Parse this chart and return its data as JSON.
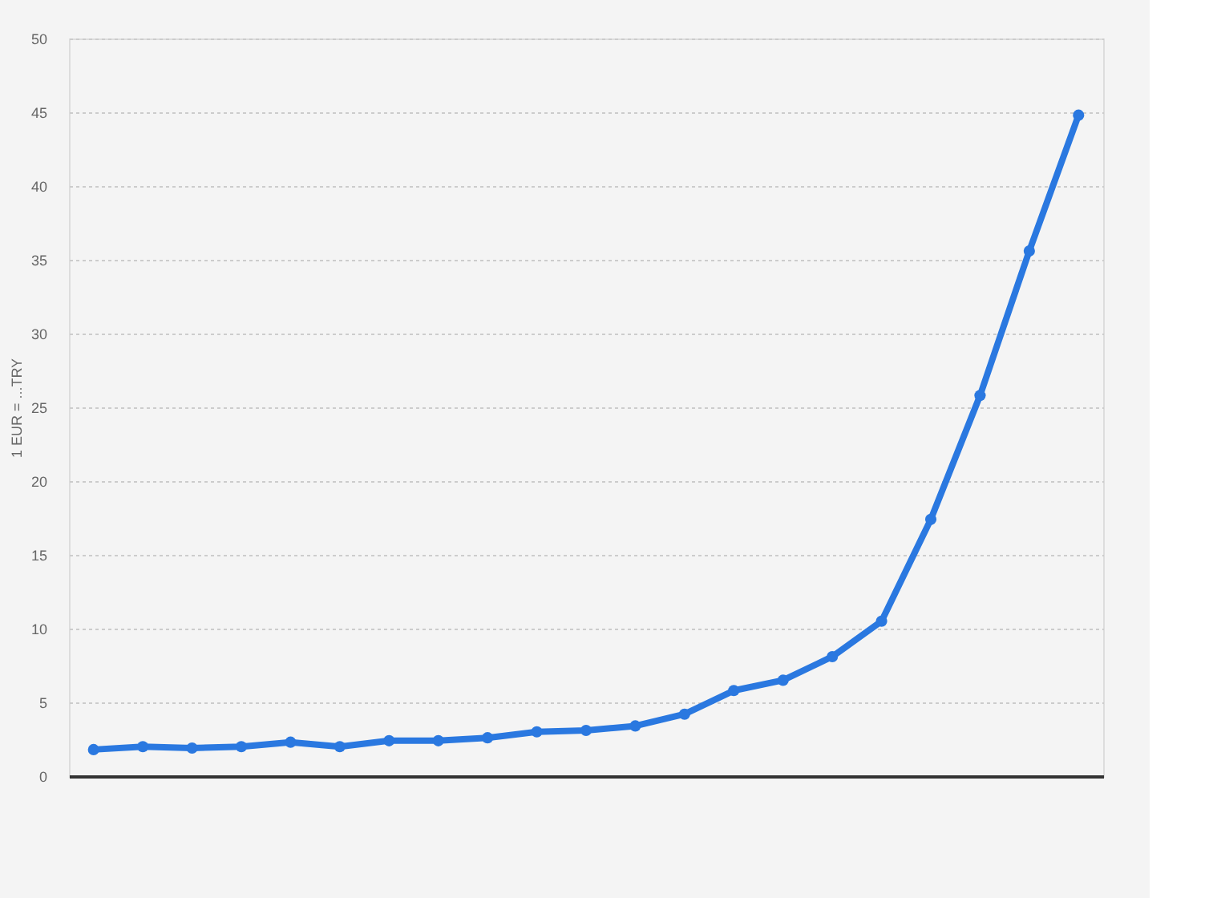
{
  "chart_data": {
    "type": "line",
    "ylabel": "1 EUR = ...TRY",
    "categories": [
      null,
      null,
      null,
      null,
      null,
      null,
      null,
      null,
      null,
      null,
      null,
      null,
      null,
      null,
      null,
      null,
      null,
      null,
      null,
      null,
      null
    ],
    "series": [
      {
        "color": "#2a78e0",
        "values": [
          1.8,
          2.0,
          1.9,
          2.0,
          2.3,
          2.0,
          2.4,
          2.4,
          2.6,
          3.0,
          3.1,
          3.4,
          4.2,
          5.8,
          6.5,
          8.1,
          10.5,
          17.4,
          25.8,
          35.6,
          44.8
        ]
      }
    ],
    "ylim": [
      0,
      50
    ],
    "yticks": [
      0,
      5,
      10,
      15,
      20,
      25,
      30,
      35,
      40,
      45,
      50
    ],
    "grid": "y",
    "marker": "circle",
    "line_style": "solid",
    "tick_labels": "y"
  }
}
